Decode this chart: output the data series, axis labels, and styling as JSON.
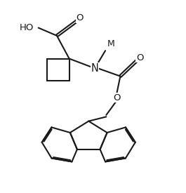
{
  "background": "#ffffff",
  "line_color": "#1a1a1a",
  "lw": 1.5,
  "figsize": [
    2.65,
    2.75
  ],
  "dpi": 100,
  "xlim": [
    0,
    10.5
  ],
  "ylim": [
    0,
    10.5
  ]
}
